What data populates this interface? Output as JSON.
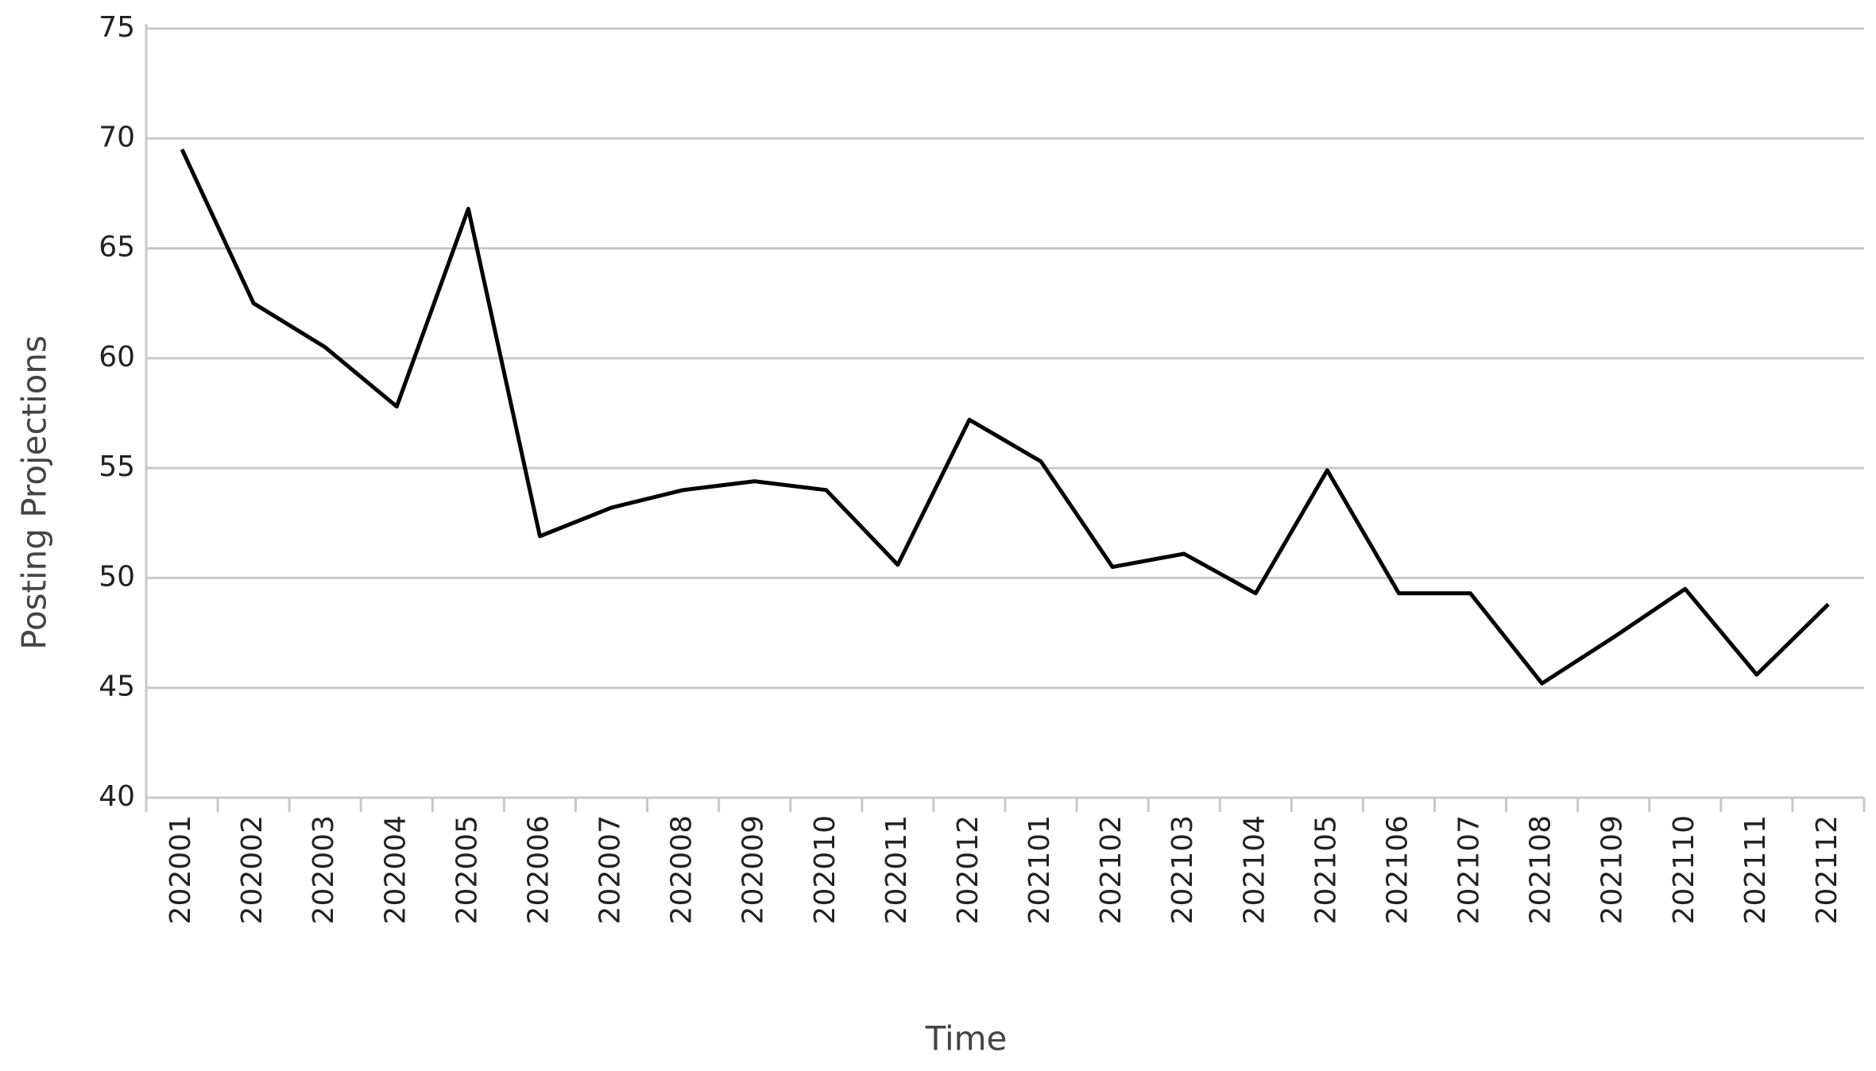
{
  "chart_data": {
    "type": "line",
    "x_label": "Time",
    "y_label": "Posting Projections",
    "categories": [
      "202001",
      "202002",
      "202003",
      "202004",
      "202005",
      "202006",
      "202007",
      "202008",
      "202009",
      "202010",
      "202011",
      "202012",
      "202101",
      "202102",
      "202103",
      "202104",
      "202105",
      "202106",
      "202107",
      "202108",
      "202109",
      "202110",
      "202111",
      "202112"
    ],
    "values": [
      69.5,
      62.5,
      60.5,
      57.8,
      66.8,
      51.9,
      53.2,
      54.0,
      54.4,
      54.0,
      50.6,
      57.2,
      55.3,
      50.5,
      51.1,
      49.3,
      54.9,
      49.3,
      49.3,
      45.2,
      47.3,
      49.5,
      45.6,
      48.8
    ],
    "color": "#000000",
    "ylim": [
      40,
      75
    ],
    "yticks": [
      40,
      45,
      50,
      55,
      60,
      65,
      70,
      75
    ],
    "grid": true
  }
}
